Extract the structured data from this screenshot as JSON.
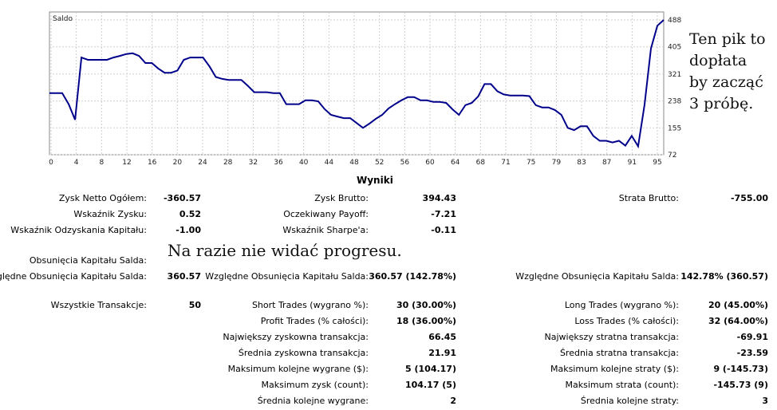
{
  "chart_data": {
    "type": "line",
    "title": "Saldo",
    "x_ticks": [
      "0",
      "4",
      "8",
      "12",
      "16",
      "20",
      "24",
      "28",
      "32",
      "36",
      "40",
      "44",
      "48",
      "52",
      "56",
      "60",
      "64",
      "68",
      "71",
      "75",
      "79",
      "83",
      "87",
      "91",
      "95"
    ],
    "y_ticks": [
      "488",
      "405",
      "321",
      "238",
      "155",
      "72"
    ],
    "ylim": [
      72,
      488
    ],
    "xlim": [
      0,
      96
    ],
    "grid": true,
    "series": [
      {
        "x": [
          0,
          1,
          2,
          3,
          4,
          5,
          6,
          7,
          8,
          9,
          10,
          11,
          12,
          13,
          14,
          15,
          16,
          17,
          18,
          19,
          20,
          21,
          22,
          23,
          24,
          25,
          26,
          27,
          28,
          29,
          30,
          31,
          32,
          33,
          34,
          35,
          36,
          37,
          38,
          39,
          40,
          41,
          42,
          43,
          44,
          45,
          46,
          47,
          48,
          49,
          50,
          51,
          52,
          53,
          54,
          55,
          56,
          57,
          58,
          59,
          60,
          61,
          62,
          63,
          64,
          65,
          66,
          67,
          68,
          69,
          70,
          71,
          72,
          73,
          74,
          75,
          76,
          77,
          78,
          79,
          80,
          81,
          82,
          83,
          84,
          85,
          86,
          87,
          88,
          89,
          90,
          91,
          92,
          93,
          94,
          95,
          96
        ],
        "y": [
          262,
          262,
          262,
          228,
          180,
          372,
          365,
          365,
          365,
          365,
          372,
          377,
          383,
          385,
          377,
          355,
          355,
          338,
          325,
          325,
          332,
          365,
          372,
          372,
          372,
          345,
          312,
          306,
          303,
          303,
          303,
          285,
          265,
          265,
          265,
          262,
          262,
          228,
          228,
          228,
          240,
          240,
          237,
          213,
          195,
          190,
          185,
          185,
          170,
          155,
          168,
          183,
          195,
          215,
          228,
          240,
          250,
          250,
          240,
          240,
          235,
          235,
          232,
          212,
          195,
          225,
          232,
          252,
          290,
          290,
          268,
          258,
          255,
          255,
          255,
          253,
          225,
          218,
          218,
          210,
          195,
          155,
          148,
          160,
          160,
          130,
          115,
          115,
          110,
          115,
          100,
          130,
          98,
          225,
          400,
          470,
          488
        ]
      }
    ]
  },
  "annotations": {
    "top_right": [
      "Ten pik to",
      "dopłata",
      "by zacząć",
      "3 próbę."
    ],
    "middle": "Na razie nie widać progresu."
  },
  "stats": {
    "title": "Wyniki",
    "rows": [
      {
        "label": "Zysk Netto Ogółem:",
        "value": "-360.57"
      },
      {
        "label": "Wskaźnik Zysku:",
        "value": "0.52"
      },
      {
        "label": "Wskaźnik Odzyskania Kapitału:",
        "value": "-1.00"
      },
      {
        "label": "Obsunięcia Kapitału Salda:",
        "value": ""
      },
      {
        "label": "Względne Obsunięcia Kapitału Salda:",
        "value": "360.57"
      },
      {
        "label": "Wszystkie Transakcje:",
        "value": "50"
      },
      {
        "label": "Zysk Brutto:",
        "value": "394.43"
      },
      {
        "label": "Oczekiwany Payoff:",
        "value": "-7.21"
      },
      {
        "label": "Wskaźnik Sharpe'a:",
        "value": "-0.11"
      },
      {
        "label": "Względne Obsunięcia Kapitału Salda:",
        "value": "360.57 (142.78%)"
      },
      {
        "label": "Short Trades (wygrano %):",
        "value": "30 (30.00%)"
      },
      {
        "label": "Profit Trades (% całości):",
        "value": "18 (36.00%)"
      },
      {
        "label": "Największy zyskowna transakcja:",
        "value": "66.45"
      },
      {
        "label": "Średnia zyskowna transakcja:",
        "value": "21.91"
      },
      {
        "label": "Maksimum kolejne wygrane ($):",
        "value": "5 (104.17)"
      },
      {
        "label": "Maksimum zysk (count):",
        "value": "104.17 (5)"
      },
      {
        "label": "Średnia kolejne wygrane:",
        "value": "2"
      },
      {
        "label": "Strata Brutto:",
        "value": "-755.00"
      },
      {
        "label": "Względne Obsunięcia Kapitału Salda:",
        "value": "142.78% (360.57)"
      },
      {
        "label": "Long Trades (wygrano %):",
        "value": "20 (45.00%)"
      },
      {
        "label": "Loss Trades (% całości):",
        "value": "32 (64.00%)"
      },
      {
        "label": "Największy stratna transakcja:",
        "value": "-69.91"
      },
      {
        "label": "Średnia stratna transakcja:",
        "value": "-23.59"
      },
      {
        "label": "Maksimum kolejne straty ($):",
        "value": "9 (-145.73)"
      },
      {
        "label": "Maksimum strata (count):",
        "value": "-145.73 (9)"
      },
      {
        "label": "Średnia kolejne straty:",
        "value": "3"
      }
    ]
  }
}
